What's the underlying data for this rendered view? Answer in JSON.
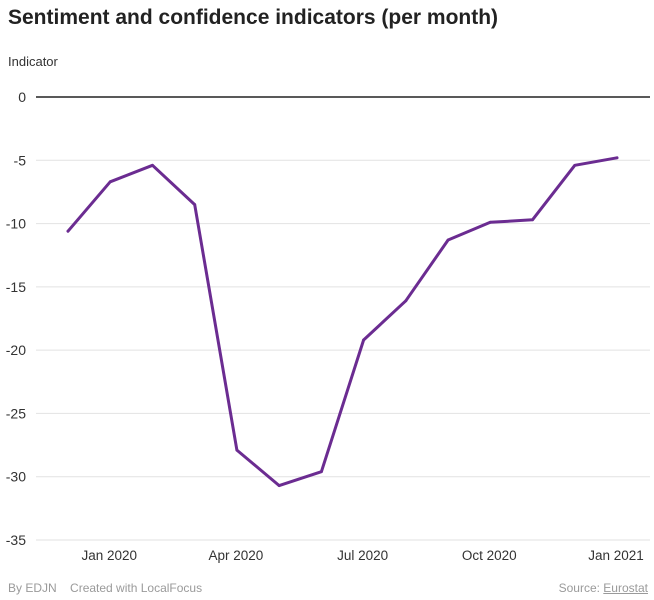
{
  "header": {
    "title": "Sentiment and confidence indicators (per month)"
  },
  "chart_data": {
    "type": "line",
    "title": "Sentiment and confidence indicators (per month)",
    "ylabel": "Indicator",
    "xlabel": "",
    "ylim": [
      -35,
      0
    ],
    "yticks": [
      0,
      -5,
      -10,
      -15,
      -20,
      -25,
      -30,
      -35
    ],
    "xticks": [
      "Jan 2020",
      "Apr 2020",
      "Jul 2020",
      "Oct 2020",
      "Jan 2021"
    ],
    "grid": true,
    "line_color": "#6b2c91",
    "series": [
      {
        "x": [
          "Dec 2019",
          "Jan 2020",
          "Feb 2020",
          "Mar 2020",
          "Apr 2020",
          "May 2020",
          "Jun 2020",
          "Jul 2020",
          "Aug 2020",
          "Sep 2020",
          "Oct 2020",
          "Nov 2020",
          "Dec 2020",
          "Jan 2021"
        ],
        "values": [
          -10.6,
          -6.7,
          -5.4,
          -8.5,
          -27.9,
          -30.7,
          -29.6,
          -19.2,
          -16.1,
          -11.3,
          -9.9,
          -9.7,
          -5.4,
          -4.8
        ]
      }
    ]
  },
  "footer": {
    "by": "By EDJN",
    "created": "Created with LocalFocus",
    "source_label": "Source:",
    "source_link": "Eurostat"
  }
}
